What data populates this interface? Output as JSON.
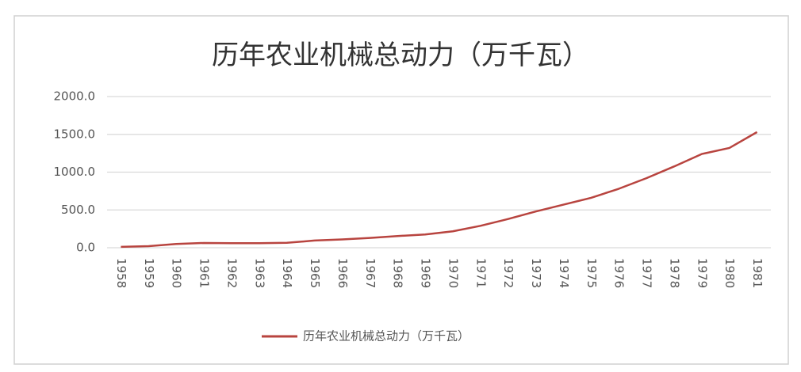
{
  "chart_data": {
    "type": "line",
    "title": "历年农业机械总动力（万千瓦）",
    "categories": [
      "1958",
      "1959",
      "1960",
      "1961",
      "1962",
      "1963",
      "1964",
      "1965",
      "1966",
      "1967",
      "1968",
      "1969",
      "1970",
      "1971",
      "1972",
      "1973",
      "1974",
      "1975",
      "1976",
      "1977",
      "1978",
      "1979",
      "1980",
      "1981"
    ],
    "series": [
      {
        "name": "历年农业机械总动力（万千瓦）",
        "color": "#b8443f",
        "values": [
          12,
          21,
          50,
          63,
          60,
          60,
          65,
          95,
          110,
          130,
          155,
          175,
          217,
          290,
          380,
          480,
          570,
          660,
          780,
          920,
          1075,
          1240,
          1320,
          1530
        ]
      }
    ],
    "ylim": [
      0,
      2000
    ],
    "yticks": [
      {
        "value": 0,
        "label": "0.0"
      },
      {
        "value": 500,
        "label": "500.0"
      },
      {
        "value": 1000,
        "label": "1000.0"
      },
      {
        "value": 1500,
        "label": "1500.0"
      },
      {
        "value": 2000,
        "label": "2000.0"
      }
    ],
    "grid": true,
    "legend": "bottom"
  }
}
